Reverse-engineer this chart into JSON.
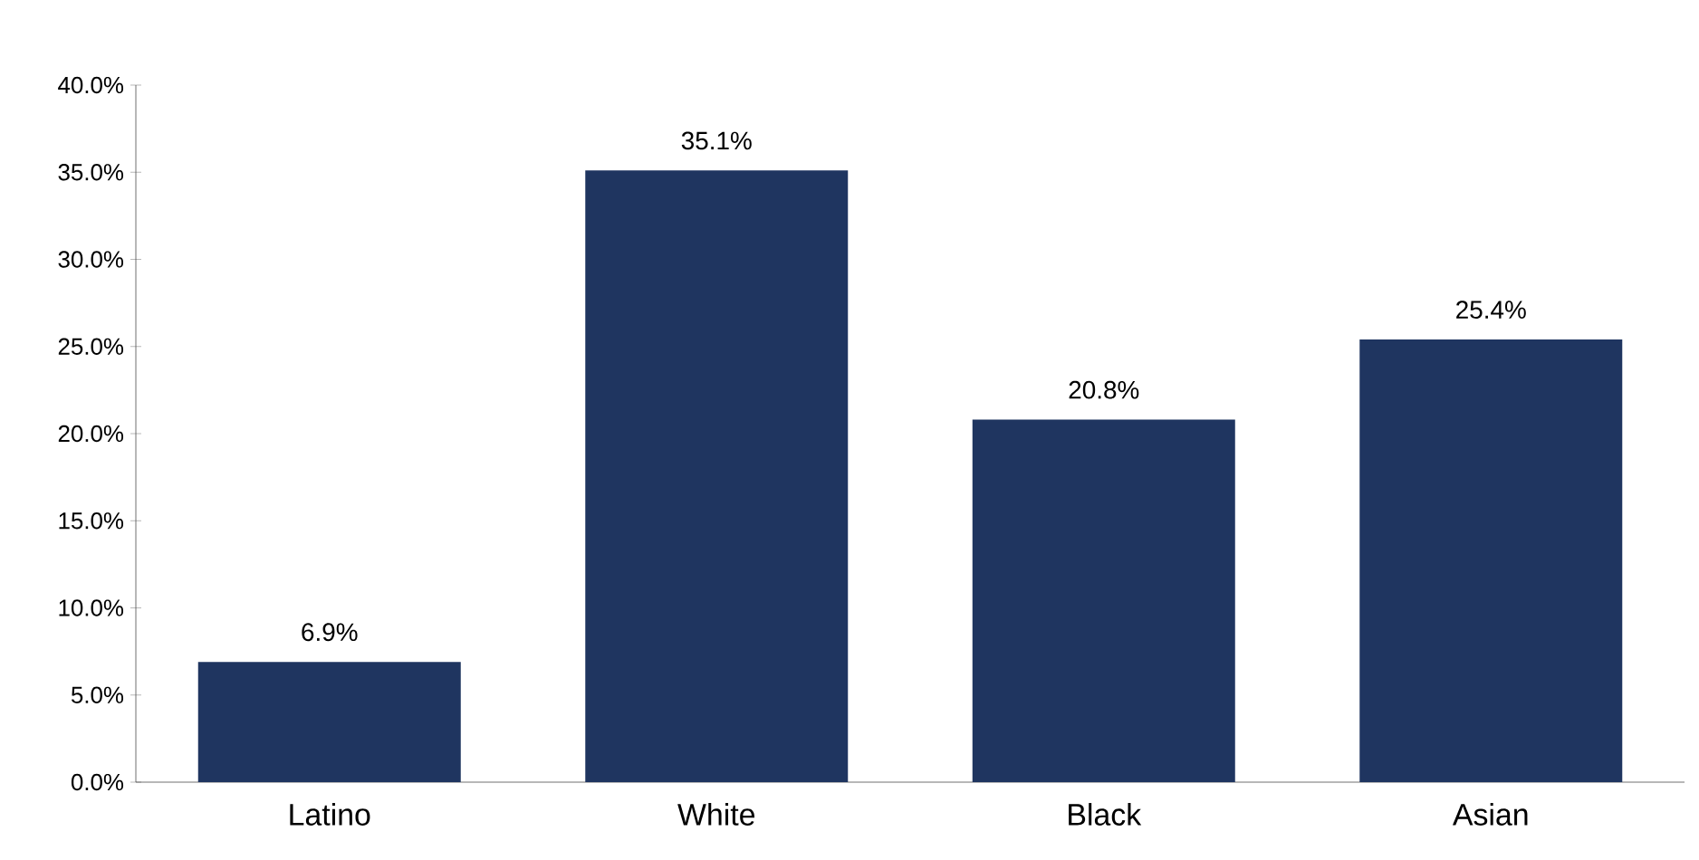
{
  "chart_data": {
    "type": "bar",
    "categories": [
      "Latino",
      "White",
      "Black",
      "Asian"
    ],
    "values": [
      6.9,
      35.1,
      20.8,
      25.4
    ],
    "value_labels": [
      "6.9%",
      "35.1%",
      "20.8%",
      "25.4%"
    ],
    "color": "#1f3560",
    "ylim": [
      0,
      40
    ],
    "yticks": [
      {
        "value": 0,
        "label": "0.0%"
      },
      {
        "value": 5,
        "label": "5.0%"
      },
      {
        "value": 10,
        "label": "10.0%"
      },
      {
        "value": 15,
        "label": "15.0%"
      },
      {
        "value": 20,
        "label": "20.0%"
      },
      {
        "value": 25,
        "label": "25.0%"
      },
      {
        "value": 30,
        "label": "30.0%"
      },
      {
        "value": 35,
        "label": "35.0%"
      },
      {
        "value": 40,
        "label": "40.0%"
      }
    ],
    "grid": false
  }
}
